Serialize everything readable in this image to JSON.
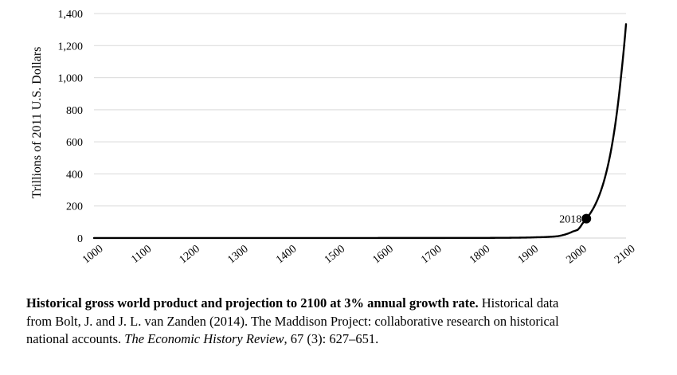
{
  "chart_data": {
    "type": "line",
    "title": "",
    "xlabel": "",
    "ylabel": "Trillions of 2011 U.S. Dollars",
    "xlim": [
      1000,
      2100
    ],
    "ylim": [
      0,
      1400
    ],
    "x_ticks": [
      1000,
      1100,
      1200,
      1300,
      1400,
      1500,
      1600,
      1700,
      1800,
      1900,
      2000,
      2100
    ],
    "x_tick_labels": [
      "1000",
      "1100",
      "1200",
      "1300",
      "1400",
      "1500",
      "1600",
      "1700",
      "1800",
      "1900",
      "2000",
      "2100"
    ],
    "y_ticks": [
      0,
      200,
      400,
      600,
      800,
      1000,
      1200,
      1400
    ],
    "y_tick_labels": [
      "0",
      "200",
      "400",
      "600",
      "800",
      "1,000",
      "1,200",
      "1,400"
    ],
    "grid": "horizontal",
    "series": [
      {
        "x": [
          1000,
          1500,
          1600,
          1700,
          1800,
          1820,
          1850,
          1870,
          1900,
          1913,
          1930,
          1950,
          1960,
          1970,
          1980,
          1990,
          2000,
          2010,
          2018,
          2030,
          2040,
          2050,
          2060,
          2070,
          2080,
          2090,
          2100
        ],
        "y": [
          0.2,
          0.4,
          0.6,
          0.6,
          0.9,
          1.2,
          1.6,
          2.1,
          3.4,
          4.8,
          6,
          9.3,
          12,
          19,
          28,
          41,
          51,
          91,
          121,
          173,
          232,
          312,
          419,
          563,
          757,
          1017,
          1334
        ]
      }
    ],
    "annotations": [
      {
        "label": "2018",
        "x": 2018,
        "y": 121
      }
    ]
  },
  "caption": {
    "bold": "Historical gross world product and projection to 2100 at 3% annual growth rate.",
    "line1_rest": " Historical data",
    "line2": "from Bolt, J. and J. L. van Zanden (2014). The Maddison Project: collaborative research on historical",
    "line3_a": "national accounts. ",
    "journal": "The Economic History Review",
    "line3_b": ", 67 (3): 627–651."
  }
}
